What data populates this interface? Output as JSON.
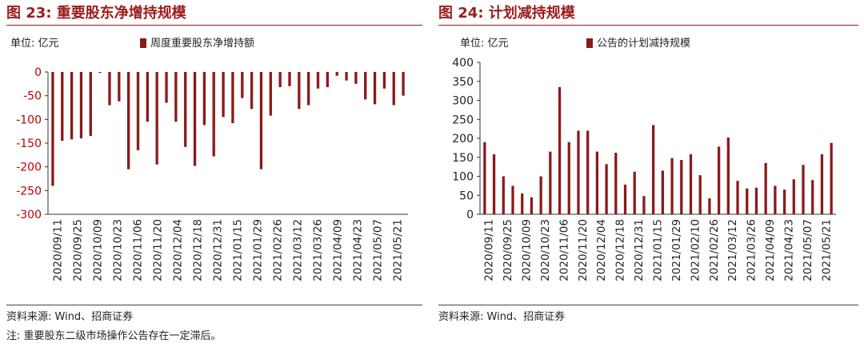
{
  "chart_data": [
    {
      "type": "bar",
      "figure_label": "图 23:",
      "title": "重要股东净增持规模",
      "unit_label": "单位: 亿元",
      "series": [
        {
          "name": "周度重要股东净增持额",
          "color": "#8b1a1a",
          "values": [
            -240,
            -145,
            -142,
            -140,
            -135,
            -2,
            -70,
            -62,
            -205,
            -165,
            -105,
            -195,
            -65,
            -105,
            -158,
            -198,
            -112,
            -178,
            -95,
            -108,
            -55,
            -78,
            -205,
            -92,
            -32,
            -30,
            -78,
            -70,
            -35,
            -32,
            -8,
            -18,
            -25,
            -58,
            -68,
            -35,
            -70,
            -50
          ]
        }
      ],
      "ylim": [
        -300,
        0
      ],
      "yticks": [
        0,
        -50,
        -100,
        -150,
        -200,
        -250,
        -300
      ],
      "ytick_color": "#c00000",
      "xticks": [
        "2020/09/11",
        "2020/09/25",
        "2020/10/09",
        "2020/10/23",
        "2020/11/06",
        "2020/11/20",
        "2020/12/04",
        "2020/12/18",
        "2020/12/31",
        "2021/01/15",
        "2021/01/29",
        "2021/02/26",
        "2021/03/12",
        "2021/03/26",
        "2021/04/09",
        "2021/04/23",
        "2021/05/07",
        "2021/05/21"
      ],
      "source": "资料来源: Wind、招商证券",
      "note": "注: 重要股东二级市场操作公告存在一定滞后。"
    },
    {
      "type": "bar",
      "figure_label": "图 24:",
      "title": "计划减持规模",
      "unit_label": "单位: 亿元",
      "series": [
        {
          "name": "公告的计划减持规模",
          "color": "#8b1a1a",
          "values": [
            190,
            158,
            100,
            75,
            55,
            45,
            100,
            165,
            335,
            190,
            220,
            220,
            165,
            132,
            162,
            78,
            112,
            48,
            235,
            115,
            148,
            143,
            158,
            103,
            42,
            178,
            202,
            88,
            68,
            70,
            135,
            75,
            65,
            92,
            130,
            90,
            158,
            188
          ]
        }
      ],
      "ylim": [
        0,
        400
      ],
      "yticks": [
        0,
        50,
        100,
        150,
        200,
        250,
        300,
        350,
        400
      ],
      "xticks": [
        "2020/09/11",
        "2020/09/25",
        "2020/10/09",
        "2020/10/23",
        "2020/11/06",
        "2020/11/20",
        "2020/12/04",
        "2020/12/18",
        "2020/12/31",
        "2021/01/15",
        "2021/01/29",
        "2021/02/10",
        "2021/02/26",
        "2021/03/12",
        "2021/03/26",
        "2021/04/09",
        "2021/04/23",
        "2021/05/07",
        "2021/05/21"
      ],
      "source": "资料来源: Wind、招商证券"
    }
  ]
}
